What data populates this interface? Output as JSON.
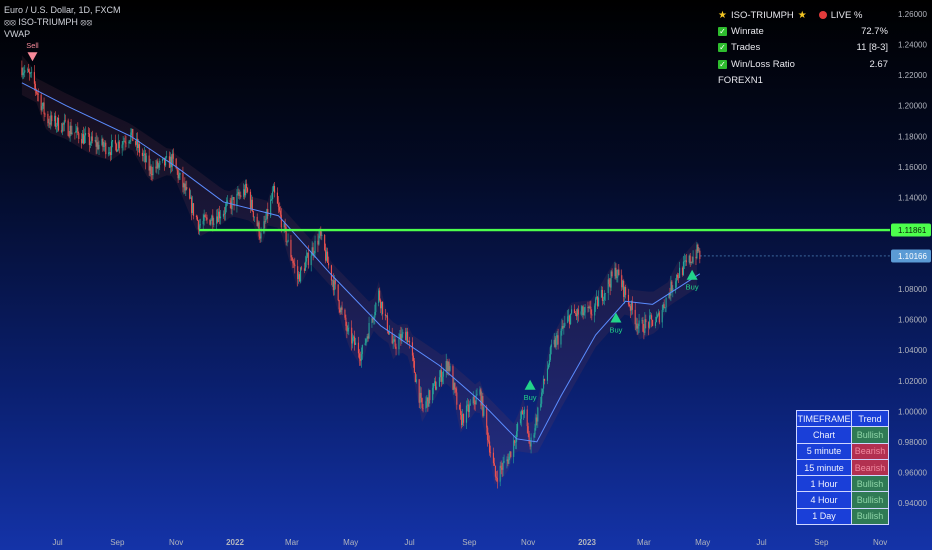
{
  "legend": {
    "symbol": "Euro / U.S. Dollar, 1D, FXCM",
    "indicator": "⦻⦻ ISO-TRIUMPH ⦻⦻",
    "vwap": "VWAP"
  },
  "stats_panel": {
    "title": "ISO-TRIUMPH",
    "live_label": "LIVE %",
    "rows": [
      {
        "label": "Winrate",
        "value": "72.7%"
      },
      {
        "label": "Trades",
        "value": "11 [8-3]"
      },
      {
        "label": "Win/Loss Ratio",
        "value": "2.67"
      }
    ],
    "footer": "FOREXN1"
  },
  "timeframe_table": {
    "headers": [
      "TIMEFRAME",
      "Trend"
    ],
    "rows": [
      {
        "tf": "Chart",
        "trend": "Bullish"
      },
      {
        "tf": "5 minute",
        "trend": "Bearish"
      },
      {
        "tf": "15 minute",
        "trend": "Bearish"
      },
      {
        "tf": "1 Hour",
        "trend": "Bullish"
      },
      {
        "tf": "4 Hour",
        "trend": "Bullish"
      },
      {
        "tf": "1 Day",
        "trend": "Bullish"
      }
    ]
  },
  "colors": {
    "bull_candle": "#26a69a",
    "bear_candle": "#ef5350",
    "vwap_line": "#5b8cff",
    "level_line": "#4cff4c",
    "price_label": "#5b9bd5",
    "buy_signal": "#22d38a",
    "sell_signal": "#f78a9a"
  },
  "chart_data": {
    "type": "candlestick",
    "symbol": "EURUSD",
    "timeframe": "1D",
    "x_ticks": [
      "Jul",
      "Sep",
      "Nov",
      "2022",
      "Mar",
      "May",
      "Jul",
      "Sep",
      "Nov",
      "2023",
      "Mar",
      "May",
      "Jul",
      "Sep",
      "Nov"
    ],
    "x_tick_dates": [
      "2021-07-01",
      "2021-09-01",
      "2021-11-01",
      "2022-01-01",
      "2022-03-01",
      "2022-05-01",
      "2022-07-01",
      "2022-09-01",
      "2022-11-01",
      "2023-01-01",
      "2023-03-01",
      "2023-05-01",
      "2023-07-01",
      "2023-09-01",
      "2023-11-01"
    ],
    "y_ticks": [
      "1.26000",
      "1.24000",
      "1.22000",
      "1.20000",
      "1.18000",
      "1.16000",
      "1.14000",
      "1.12000",
      "1.10000",
      "1.08000",
      "1.06000",
      "1.04000",
      "1.02000",
      "1.00000",
      "0.98000",
      "0.96000",
      "0.94000"
    ],
    "y_range": [
      0.93,
      1.265
    ],
    "price_series": [
      {
        "date": "2021-05-25",
        "close": 1.225
      },
      {
        "date": "2021-06-05",
        "close": 1.217
      },
      {
        "date": "2021-06-20",
        "close": 1.191
      },
      {
        "date": "2021-07-10",
        "close": 1.186
      },
      {
        "date": "2021-08-05",
        "close": 1.176
      },
      {
        "date": "2021-08-25",
        "close": 1.172
      },
      {
        "date": "2021-09-15",
        "close": 1.181
      },
      {
        "date": "2021-10-05",
        "close": 1.158
      },
      {
        "date": "2021-10-28",
        "close": 1.164
      },
      {
        "date": "2021-11-25",
        "close": 1.122
      },
      {
        "date": "2021-12-20",
        "close": 1.131
      },
      {
        "date": "2022-01-13",
        "close": 1.145
      },
      {
        "date": "2022-01-28",
        "close": 1.114
      },
      {
        "date": "2022-02-10",
        "close": 1.143
      },
      {
        "date": "2022-03-07",
        "close": 1.087
      },
      {
        "date": "2022-03-30",
        "close": 1.115
      },
      {
        "date": "2022-04-28",
        "close": 1.051
      },
      {
        "date": "2022-05-12",
        "close": 1.037
      },
      {
        "date": "2022-05-30",
        "close": 1.077
      },
      {
        "date": "2022-06-14",
        "close": 1.042
      },
      {
        "date": "2022-06-28",
        "close": 1.052
      },
      {
        "date": "2022-07-14",
        "close": 1.001
      },
      {
        "date": "2022-08-10",
        "close": 1.032
      },
      {
        "date": "2022-08-23",
        "close": 0.994
      },
      {
        "date": "2022-09-12",
        "close": 1.012
      },
      {
        "date": "2022-09-28",
        "close": 0.957
      },
      {
        "date": "2022-10-12",
        "close": 0.97
      },
      {
        "date": "2022-10-27",
        "close": 1.001
      },
      {
        "date": "2022-11-03",
        "close": 0.977
      },
      {
        "date": "2022-11-25",
        "close": 1.04
      },
      {
        "date": "2022-12-15",
        "close": 1.063
      },
      {
        "date": "2023-01-06",
        "close": 1.065
      },
      {
        "date": "2023-01-31",
        "close": 1.092
      },
      {
        "date": "2023-02-24",
        "close": 1.055
      },
      {
        "date": "2023-03-15",
        "close": 1.06
      },
      {
        "date": "2023-04-03",
        "close": 1.088
      },
      {
        "date": "2023-04-26",
        "close": 1.105
      },
      {
        "date": "2023-04-28",
        "close": 1.102
      }
    ],
    "vwap_series": [
      {
        "date": "2021-05-25",
        "value": 1.215
      },
      {
        "date": "2021-07-10",
        "value": 1.2
      },
      {
        "date": "2021-09-15",
        "value": 1.18
      },
      {
        "date": "2021-11-01",
        "value": 1.16
      },
      {
        "date": "2021-12-20",
        "value": 1.137
      },
      {
        "date": "2022-02-15",
        "value": 1.128
      },
      {
        "date": "2022-04-10",
        "value": 1.09
      },
      {
        "date": "2022-06-01",
        "value": 1.056
      },
      {
        "date": "2022-08-01",
        "value": 1.03
      },
      {
        "date": "2022-09-10",
        "value": 1.008
      },
      {
        "date": "2022-10-20",
        "value": 0.982
      },
      {
        "date": "2022-11-10",
        "value": 0.98
      },
      {
        "date": "2022-12-05",
        "value": 1.01
      },
      {
        "date": "2023-01-10",
        "value": 1.05
      },
      {
        "date": "2023-02-10",
        "value": 1.072
      },
      {
        "date": "2023-03-10",
        "value": 1.07
      },
      {
        "date": "2023-04-28",
        "value": 1.09
      }
    ],
    "horizontal_level": {
      "value": 1.11861,
      "label": "1.11861",
      "from_date": "2021-11-25"
    },
    "last_price": {
      "value": 1.10166,
      "label": "1.10166"
    },
    "signals": [
      {
        "type": "sell",
        "label": "Sell",
        "date": "2021-06-05",
        "price": 1.235
      },
      {
        "type": "buy",
        "label": "Buy",
        "date": "2022-11-03",
        "price": 1.02
      },
      {
        "type": "buy",
        "label": "Buy",
        "date": "2023-01-31",
        "price": 1.064
      },
      {
        "type": "buy",
        "label": "Buy",
        "date": "2023-04-20",
        "price": 1.092
      }
    ]
  }
}
